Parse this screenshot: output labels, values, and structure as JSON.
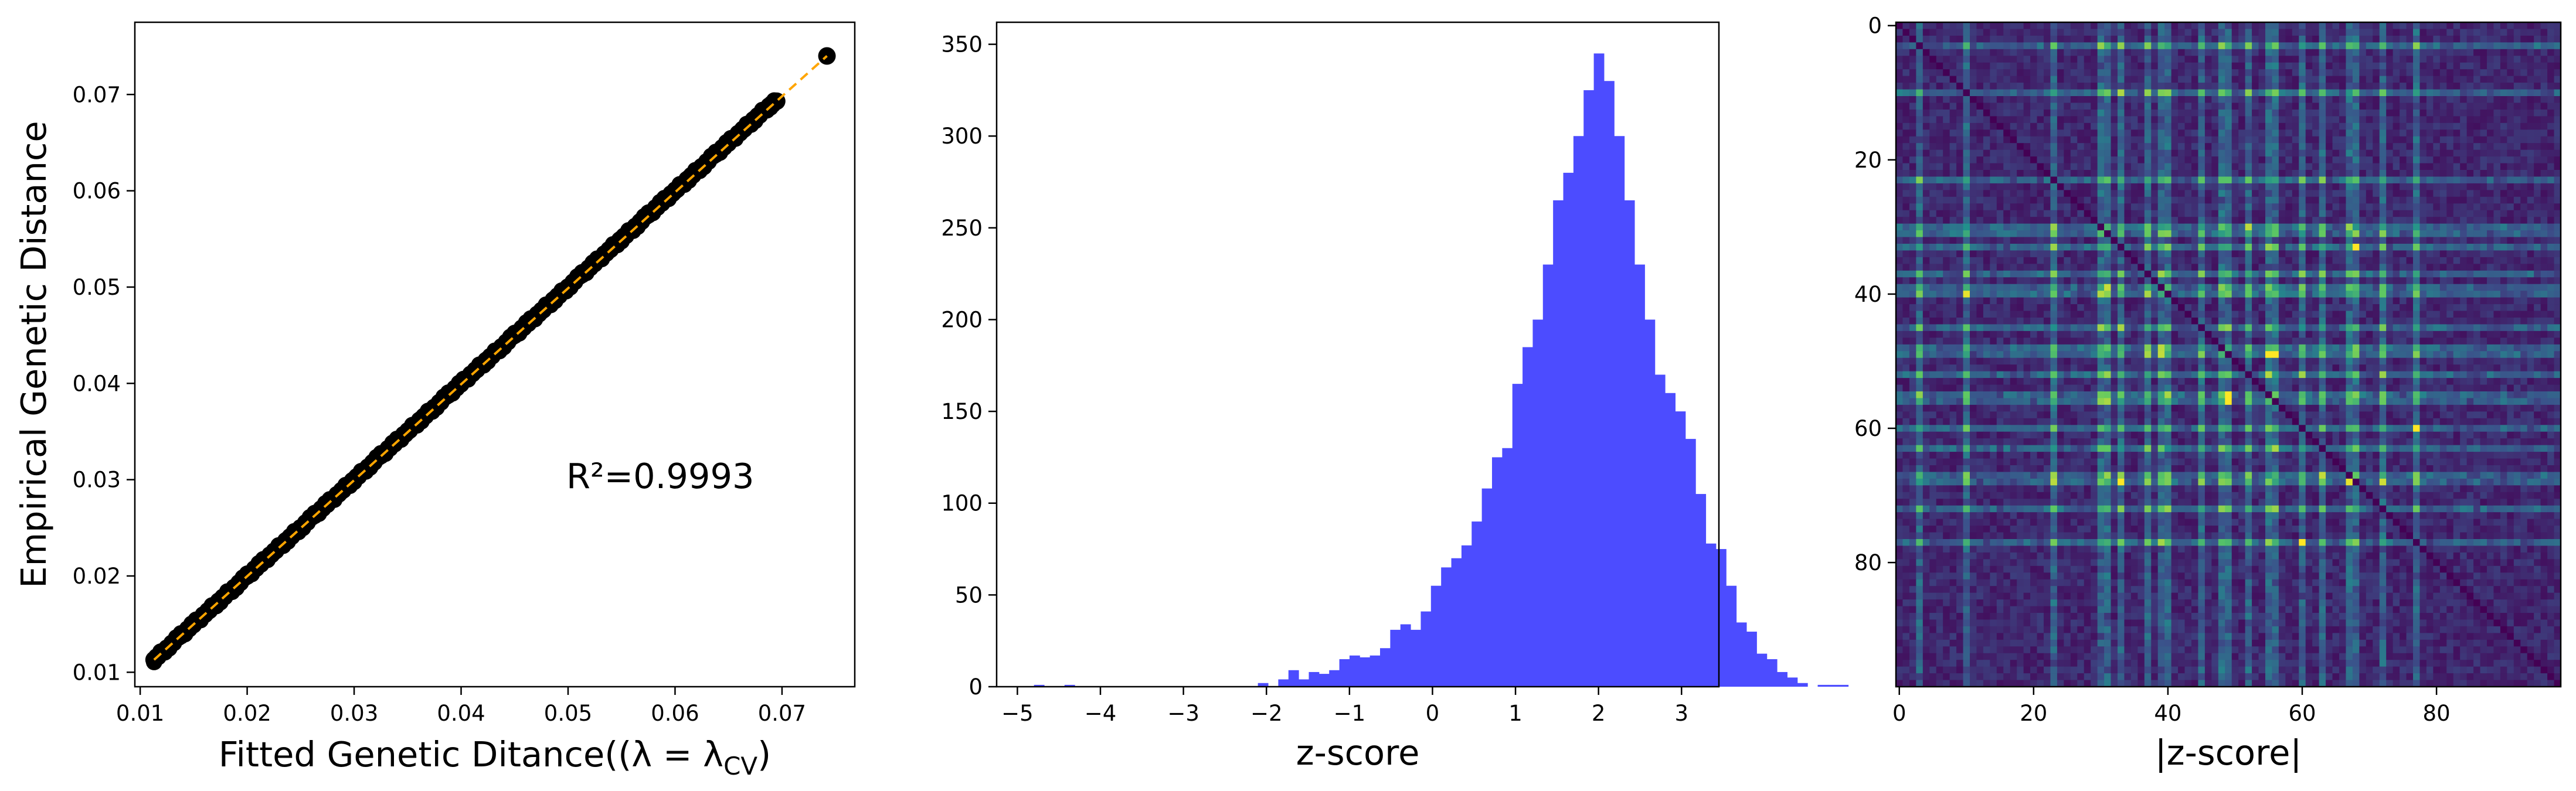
{
  "chart_data": [
    {
      "type": "scatter",
      "xlabel": "Fitted Genetic Ditance((λ = λ",
      "xlabel_sub": "CV",
      "xlabel_end": ")",
      "ylabel": "Empirical Genetic Distance",
      "xlim": [
        0.0095,
        0.0768
      ],
      "ylim": [
        0.0085,
        0.0775
      ],
      "xticks": [
        0.01,
        0.02,
        0.03,
        0.04,
        0.05,
        0.06,
        0.07
      ],
      "xtick_labels": [
        "0.01",
        "0.02",
        "0.03",
        "0.04",
        "0.05",
        "0.06",
        "0.07"
      ],
      "yticks": [
        0.01,
        0.02,
        0.03,
        0.04,
        0.05,
        0.06,
        0.07
      ],
      "ytick_labels": [
        "0.01",
        "0.02",
        "0.03",
        "0.04",
        "0.05",
        "0.06",
        "0.07"
      ],
      "annotation": "R²=0.9993",
      "point_color": "#000000",
      "fit_line_color": "#ffa500",
      "fit_line": {
        "x": [
          0.0113,
          0.0742
        ],
        "y": [
          0.0113,
          0.074
        ]
      },
      "x": [
        0.0113,
        0.0125,
        0.0138,
        0.015,
        0.0163,
        0.0175,
        0.0188,
        0.02,
        0.0213,
        0.0225,
        0.0238,
        0.025,
        0.0263,
        0.0275,
        0.0288,
        0.03,
        0.0313,
        0.0325,
        0.0338,
        0.035,
        0.0363,
        0.0375,
        0.0388,
        0.04,
        0.0413,
        0.0425,
        0.0438,
        0.045,
        0.0463,
        0.0475,
        0.0488,
        0.05,
        0.0513,
        0.0525,
        0.0538,
        0.055,
        0.0563,
        0.0575,
        0.0588,
        0.06,
        0.0613,
        0.0625,
        0.0638,
        0.065,
        0.0663,
        0.0675,
        0.0688,
        0.0695,
        0.0742
      ],
      "y": [
        0.0113,
        0.0125,
        0.0138,
        0.015,
        0.0163,
        0.0175,
        0.0188,
        0.02,
        0.0213,
        0.0225,
        0.0238,
        0.025,
        0.0263,
        0.0275,
        0.0288,
        0.03,
        0.0313,
        0.0325,
        0.0338,
        0.035,
        0.0363,
        0.0375,
        0.0388,
        0.04,
        0.0413,
        0.0425,
        0.0438,
        0.045,
        0.0463,
        0.0475,
        0.0488,
        0.05,
        0.0513,
        0.0525,
        0.0538,
        0.055,
        0.0563,
        0.0575,
        0.0588,
        0.06,
        0.0613,
        0.0625,
        0.0638,
        0.065,
        0.0663,
        0.0675,
        0.0688,
        0.0693,
        0.074
      ]
    },
    {
      "type": "bar",
      "xlabel": "z-score",
      "ylabel": "",
      "xlim": [
        -5.25,
        3.45
      ],
      "ylim": [
        0,
        362
      ],
      "xticks": [
        -5,
        -4,
        -3,
        -2,
        -1,
        0,
        1,
        2,
        3
      ],
      "xtick_labels": [
        "−5",
        "−4",
        "−3",
        "−2",
        "−1",
        "0",
        "1",
        "2",
        "3"
      ],
      "yticks": [
        0,
        50,
        100,
        150,
        200,
        250,
        300,
        350
      ],
      "ytick_labels": [
        "0",
        "50",
        "100",
        "150",
        "200",
        "250",
        "300",
        "350"
      ],
      "bar_color": "#4c4cff",
      "bin_start": -4.8,
      "bin_width": 0.1226,
      "values": [
        1,
        0,
        0,
        1,
        0,
        0,
        0,
        0,
        0,
        0,
        0,
        0,
        0,
        0,
        0,
        0,
        0,
        0,
        0,
        0,
        0,
        0,
        2,
        0,
        4,
        9,
        4,
        8,
        7,
        9,
        15,
        17,
        16,
        17,
        21,
        31,
        34,
        31,
        41,
        55,
        65,
        70,
        77,
        90,
        108,
        125,
        130,
        165,
        185,
        200,
        230,
        265,
        280,
        300,
        325,
        345,
        330,
        300,
        265,
        230,
        200,
        170,
        160,
        150,
        135,
        105,
        78,
        75,
        55,
        35,
        30,
        18,
        15,
        8,
        5,
        2,
        0,
        1,
        1,
        1,
        0,
        0,
        0,
        0,
        0,
        1
      ]
    },
    {
      "type": "heatmap",
      "xlabel": "|z-score|",
      "ylabel": "",
      "rows": 99,
      "cols": 99,
      "xticks": [
        0,
        20,
        40,
        60,
        80
      ],
      "xtick_labels": [
        "0",
        "20",
        "40",
        "60",
        "80"
      ],
      "yticks": [
        0,
        20,
        40,
        60,
        80
      ],
      "ytick_labels": [
        "0",
        "20",
        "40",
        "60",
        "80"
      ],
      "colormap": "viridis",
      "value_range": [
        0,
        3.2
      ],
      "bright_rows": [
        3,
        10,
        23,
        30,
        31,
        33,
        37,
        39,
        40,
        45,
        48,
        49,
        52,
        55,
        56,
        60,
        63,
        67,
        68,
        72,
        77
      ],
      "bright_cols": [
        3,
        10,
        23,
        30,
        31,
        33,
        37,
        39,
        40,
        45,
        48,
        49,
        52,
        55,
        56,
        60,
        63,
        67,
        68,
        72,
        77
      ],
      "peak_cells": [
        [
          49,
          56
        ],
        [
          56,
          49
        ],
        [
          55,
          49
        ],
        [
          49,
          55
        ],
        [
          33,
          68
        ],
        [
          68,
          33
        ],
        [
          77,
          60
        ],
        [
          60,
          77
        ]
      ]
    }
  ]
}
